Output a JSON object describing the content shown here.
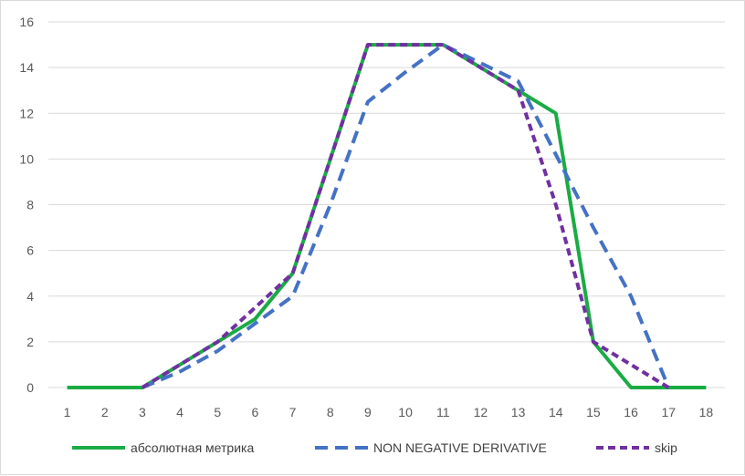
{
  "chart_data": {
    "type": "line",
    "x": [
      1,
      2,
      3,
      4,
      5,
      6,
      7,
      8,
      9,
      10,
      11,
      12,
      13,
      14,
      15,
      16,
      17,
      18
    ],
    "ylim": [
      0,
      16
    ],
    "yticks": [
      0,
      2,
      4,
      6,
      8,
      10,
      12,
      14,
      16
    ],
    "grid": "horizontal",
    "legend_position": "bottom",
    "series": [
      {
        "name": "абсолютная метрика",
        "color": "#1aab45",
        "dash": "solid",
        "x": [
          1,
          2,
          3,
          4,
          5,
          6,
          7,
          8,
          9,
          10,
          11,
          12,
          13,
          14,
          15,
          16,
          17,
          18
        ],
        "values": [
          0,
          0,
          0,
          1,
          2,
          3,
          5,
          10,
          15,
          15,
          15,
          14,
          13,
          12,
          2,
          0,
          0,
          0
        ]
      },
      {
        "name": "NON NEGATIVE DERIVATIVE",
        "color": "#4472c4",
        "dash": "long-dash",
        "x": [
          3,
          4,
          5,
          6,
          7,
          8,
          9,
          10,
          11,
          12,
          13,
          14,
          15,
          16,
          17
        ],
        "values": [
          0,
          0.7,
          1.6,
          2.8,
          4,
          8,
          12.5,
          13.8,
          15,
          14.2,
          13.4,
          10.2,
          7,
          4,
          0
        ]
      },
      {
        "name": "skip",
        "color": "#7030a0",
        "dash": "short-dash",
        "x": [
          3,
          4,
          5,
          6,
          7,
          8,
          9,
          10,
          11,
          12,
          13,
          14,
          15,
          16,
          17
        ],
        "values": [
          0,
          1,
          2,
          3.5,
          5,
          10,
          15,
          15,
          15,
          14,
          13,
          8,
          2,
          1,
          0
        ]
      }
    ]
  }
}
